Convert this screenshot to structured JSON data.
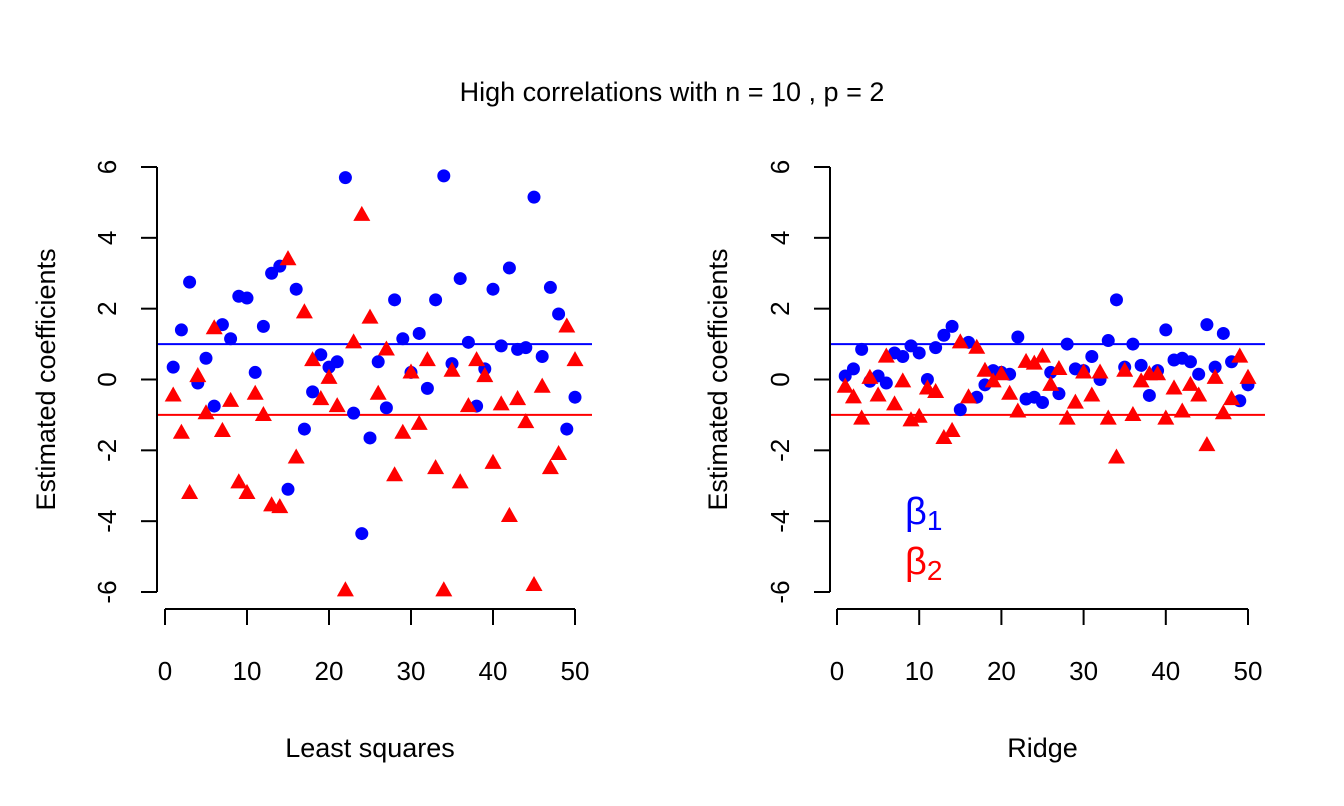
{
  "title": "High correlations with n = 10 , p = 2",
  "colors": {
    "beta1": "#0000ff",
    "beta2": "#ff0000"
  },
  "chart_data": [
    {
      "type": "scatter",
      "xlabel": "Least squares",
      "ylabel": "Estimated coefficients",
      "xlim": [
        0,
        51
      ],
      "ylim": [
        -6.5,
        6.2
      ],
      "xticks": [
        "0",
        "10",
        "20",
        "30",
        "40",
        "50"
      ],
      "yticks": [
        "-6",
        "-4",
        "-2",
        "0",
        "2",
        "4",
        "6"
      ],
      "hlines": [
        1,
        -1
      ],
      "legend": null,
      "series": [
        {
          "name": "β1",
          "marker": "circle",
          "x": [
            1,
            2,
            3,
            4,
            5,
            6,
            7,
            8,
            9,
            10,
            11,
            12,
            13,
            14,
            15,
            16,
            17,
            18,
            19,
            20,
            21,
            22,
            23,
            24,
            25,
            26,
            27,
            28,
            29,
            30,
            31,
            32,
            33,
            34,
            35,
            36,
            37,
            38,
            39,
            40,
            41,
            42,
            43,
            44,
            45,
            46,
            47,
            48,
            49,
            50
          ],
          "y": [
            0.35,
            1.4,
            2.75,
            -0.1,
            0.6,
            -0.75,
            1.55,
            1.15,
            2.35,
            2.3,
            0.2,
            1.5,
            3.0,
            3.2,
            -3.1,
            2.55,
            -1.4,
            -0.35,
            0.7,
            0.35,
            0.5,
            5.7,
            -0.95,
            -4.35,
            -1.65,
            0.5,
            -0.8,
            2.25,
            1.15,
            0.2,
            1.3,
            -0.25,
            2.25,
            5.75,
            0.45,
            2.85,
            1.05,
            -0.75,
            0.3,
            2.55,
            0.95,
            3.15,
            0.85,
            0.9,
            5.15,
            0.65,
            2.6,
            1.85,
            -1.4,
            -0.5
          ]
        },
        {
          "name": "β2",
          "marker": "triangle",
          "x": [
            1,
            2,
            3,
            4,
            5,
            6,
            7,
            8,
            9,
            10,
            11,
            12,
            13,
            14,
            15,
            16,
            17,
            18,
            19,
            20,
            21,
            22,
            23,
            24,
            25,
            26,
            27,
            28,
            29,
            30,
            31,
            32,
            33,
            34,
            35,
            36,
            37,
            38,
            39,
            40,
            41,
            42,
            43,
            44,
            45,
            46,
            47,
            48,
            49,
            50
          ],
          "y": [
            -0.45,
            -1.5,
            -3.2,
            0.1,
            -0.95,
            1.45,
            -1.45,
            -0.6,
            -2.9,
            -3.2,
            -0.4,
            -1.0,
            -3.55,
            -3.6,
            3.4,
            -2.2,
            1.9,
            0.55,
            -0.55,
            0.05,
            -0.75,
            -5.95,
            1.05,
            4.65,
            1.75,
            -0.4,
            0.85,
            -2.7,
            -1.5,
            0.2,
            -1.25,
            0.55,
            -2.5,
            -5.95,
            0.25,
            -2.9,
            -0.75,
            0.55,
            0.1,
            -2.35,
            -0.7,
            -3.85,
            -0.55,
            -1.2,
            -5.8,
            -0.2,
            -2.5,
            -2.1,
            1.5,
            0.55
          ]
        }
      ]
    },
    {
      "type": "scatter",
      "xlabel": "Ridge",
      "ylabel": "Estimated coefficients",
      "xlim": [
        0,
        51
      ],
      "ylim": [
        -6.5,
        6.2
      ],
      "xticks": [
        "0",
        "10",
        "20",
        "30",
        "40",
        "50"
      ],
      "yticks": [
        "-6",
        "-4",
        "-2",
        "0",
        "2",
        "4",
        "6"
      ],
      "hlines": [
        1,
        -1
      ],
      "legend": "bottom-left",
      "series": [
        {
          "name": "β1",
          "marker": "circle",
          "x": [
            1,
            2,
            3,
            4,
            5,
            6,
            7,
            8,
            9,
            10,
            11,
            12,
            13,
            14,
            15,
            16,
            17,
            18,
            19,
            20,
            21,
            22,
            23,
            24,
            25,
            26,
            27,
            28,
            29,
            30,
            31,
            32,
            33,
            34,
            35,
            36,
            37,
            38,
            39,
            40,
            41,
            42,
            43,
            44,
            45,
            46,
            47,
            48,
            49,
            50
          ],
          "y": [
            0.1,
            0.3,
            0.85,
            -0.05,
            0.1,
            -0.1,
            0.75,
            0.65,
            0.95,
            0.75,
            0.0,
            0.9,
            1.25,
            1.5,
            -0.85,
            1.05,
            -0.5,
            -0.15,
            0.25,
            0.2,
            0.15,
            1.2,
            -0.55,
            -0.5,
            -0.65,
            0.2,
            -0.4,
            1.0,
            0.3,
            0.25,
            0.65,
            0.0,
            1.1,
            2.25,
            0.35,
            1.0,
            0.4,
            -0.45,
            0.25,
            1.4,
            0.55,
            0.6,
            0.5,
            0.15,
            1.55,
            0.35,
            1.3,
            0.5,
            -0.6,
            -0.15
          ]
        },
        {
          "name": "β2",
          "marker": "triangle",
          "x": [
            1,
            2,
            3,
            4,
            5,
            6,
            7,
            8,
            9,
            10,
            11,
            12,
            13,
            14,
            15,
            16,
            17,
            18,
            19,
            20,
            21,
            22,
            23,
            24,
            25,
            26,
            27,
            28,
            29,
            30,
            31,
            32,
            33,
            34,
            35,
            36,
            37,
            38,
            39,
            40,
            41,
            42,
            43,
            44,
            45,
            46,
            47,
            48,
            49,
            50
          ],
          "y": [
            -0.2,
            -0.5,
            -1.1,
            0.05,
            -0.45,
            0.65,
            -0.7,
            -0.05,
            -1.15,
            -1.05,
            -0.25,
            -0.35,
            -1.65,
            -1.45,
            1.05,
            -0.5,
            0.9,
            0.25,
            -0.05,
            0.15,
            -0.4,
            -0.9,
            0.5,
            0.45,
            0.65,
            -0.15,
            0.3,
            -1.1,
            -0.65,
            0.2,
            -0.45,
            0.2,
            -1.1,
            -2.2,
            0.25,
            -1.0,
            -0.05,
            0.15,
            0.15,
            -1.1,
            -0.25,
            -0.9,
            -0.15,
            -0.45,
            -1.85,
            0.05,
            -0.95,
            -0.55,
            0.65,
            0.05
          ]
        }
      ]
    }
  ]
}
